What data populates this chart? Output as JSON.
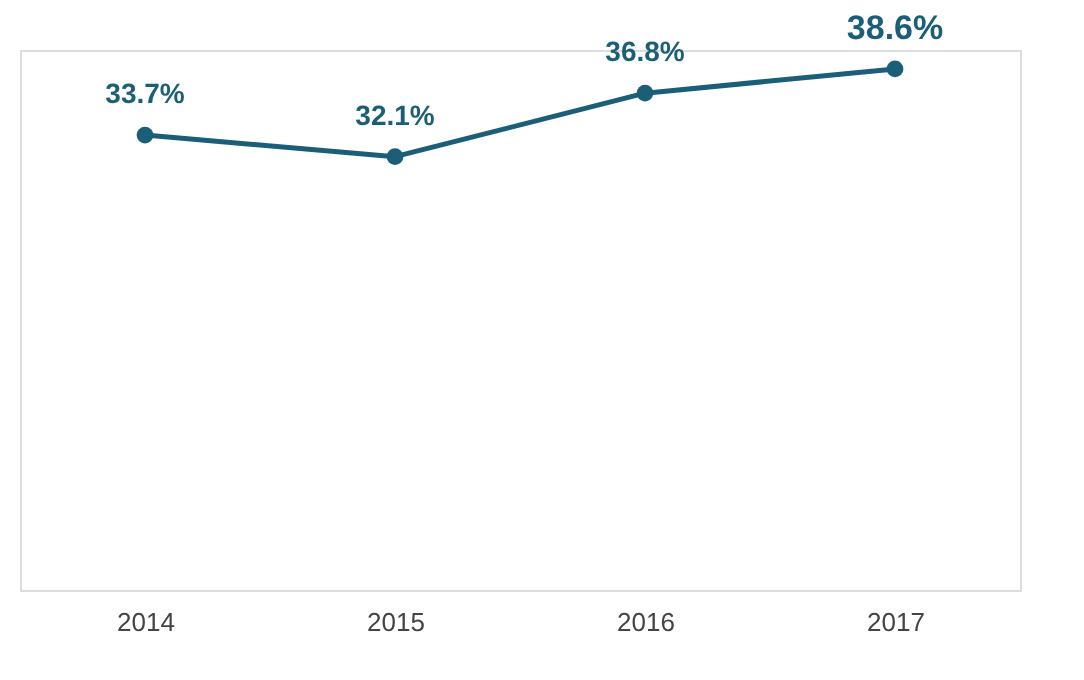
{
  "chart_data": {
    "type": "line",
    "categories": [
      "2014",
      "2015",
      "2016",
      "2017"
    ],
    "series": [
      {
        "color": "#1b5e78",
        "values": [
          33.7,
          32.1,
          36.8,
          38.6
        ],
        "value_labels": [
          "33.7%",
          "32.1%",
          "36.8%",
          "38.6%"
        ]
      }
    ],
    "tick_labels": "x",
    "marker": "circle",
    "line_style": "solid"
  }
}
